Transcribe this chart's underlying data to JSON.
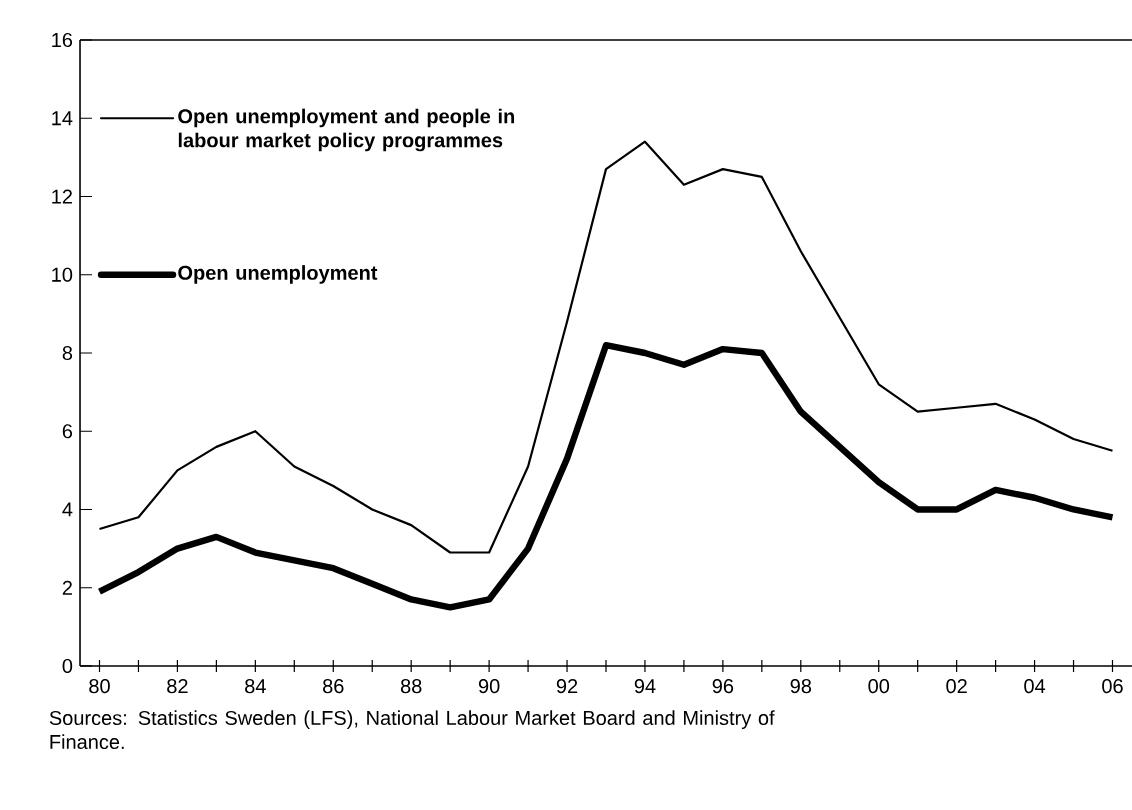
{
  "chart_data": {
    "type": "line",
    "x": [
      1980,
      1981,
      1982,
      1983,
      1984,
      1985,
      1986,
      1987,
      1988,
      1989,
      1990,
      1991,
      1992,
      1993,
      1994,
      1995,
      1996,
      1997,
      1998,
      1999,
      2000,
      2001,
      2002,
      2003,
      2004,
      2005,
      2006
    ],
    "series": [
      {
        "name": "Open unemployment and people in labour market policy programmes",
        "color": "#000000",
        "values": [
          3.5,
          3.8,
          5.0,
          5.6,
          6.0,
          5.1,
          4.6,
          4.0,
          3.6,
          2.9,
          2.9,
          5.1,
          8.8,
          12.7,
          13.4,
          12.3,
          12.7,
          12.5,
          10.6,
          8.9,
          7.2,
          6.5,
          6.6,
          6.7,
          6.3,
          5.8,
          5.5
        ]
      },
      {
        "name": "Open unemployment",
        "color": "#000000",
        "values": [
          1.9,
          2.4,
          3.0,
          3.3,
          2.9,
          2.7,
          2.5,
          2.1,
          1.7,
          1.5,
          1.7,
          3.0,
          5.3,
          8.2,
          8.0,
          7.7,
          8.1,
          8.0,
          6.5,
          5.6,
          4.7,
          4.0,
          4.0,
          4.5,
          4.3,
          4.0,
          3.8
        ]
      }
    ],
    "xlim": [
      1979.5,
      2006.5
    ],
    "ylim": [
      0,
      16
    ],
    "xticks": [
      {
        "value": 1980,
        "label": "80"
      },
      {
        "value": 1981,
        "label": null
      },
      {
        "value": 1982,
        "label": "82"
      },
      {
        "value": 1983,
        "label": null
      },
      {
        "value": 1984,
        "label": "84"
      },
      {
        "value": 1985,
        "label": null
      },
      {
        "value": 1986,
        "label": "86"
      },
      {
        "value": 1987,
        "label": null
      },
      {
        "value": 1988,
        "label": "88"
      },
      {
        "value": 1989,
        "label": null
      },
      {
        "value": 1990,
        "label": "90"
      },
      {
        "value": 1991,
        "label": null
      },
      {
        "value": 1992,
        "label": "92"
      },
      {
        "value": 1993,
        "label": null
      },
      {
        "value": 1994,
        "label": "94"
      },
      {
        "value": 1995,
        "label": null
      },
      {
        "value": 1996,
        "label": "96"
      },
      {
        "value": 1997,
        "label": null
      },
      {
        "value": 1998,
        "label": "98"
      },
      {
        "value": 1999,
        "label": null
      },
      {
        "value": 2000,
        "label": "00"
      },
      {
        "value": 2001,
        "label": null
      },
      {
        "value": 2002,
        "label": "02"
      },
      {
        "value": 2003,
        "label": null
      },
      {
        "value": 2004,
        "label": "04"
      },
      {
        "value": 2005,
        "label": null
      },
      {
        "value": 2006,
        "label": "06"
      }
    ],
    "yticks": [
      0,
      2,
      4,
      6,
      8,
      10,
      12,
      14,
      16
    ],
    "grid": false,
    "legend": "top left",
    "marker": "none",
    "line_style": "solid",
    "annotations": [
      "Sources: Statistics Sweden (LFS), National Labour Market Board and Ministry of Finance."
    ]
  }
}
